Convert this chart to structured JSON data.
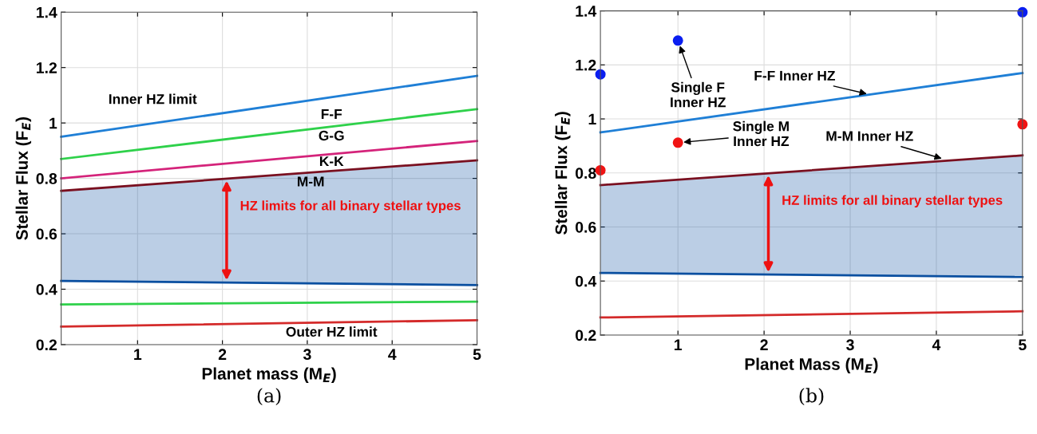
{
  "chart_data": [
    {
      "type": "line",
      "xlabel": "Planet mass (M$_{E}$)",
      "ylabel": "Stellar Flux (F$_{E}$)",
      "xlim": [
        0.1,
        5
      ],
      "ylim": [
        0.2,
        1.4
      ],
      "xticks": [
        1,
        2,
        3,
        4,
        5
      ],
      "yticks": [
        0.2,
        0.4,
        0.6,
        0.8,
        1,
        1.2,
        1.4
      ],
      "grid": true,
      "series": [
        {
          "color": "#1f7fd6",
          "x": [
            0.1,
            5
          ],
          "values": [
            0.95,
            1.17
          ]
        },
        {
          "color": "#2ed14a",
          "x": [
            0.1,
            5
          ],
          "values": [
            0.87,
            1.05
          ]
        },
        {
          "color": "#d4237a",
          "x": [
            0.1,
            5
          ],
          "values": [
            0.8,
            0.935
          ]
        },
        {
          "color": "#7a1020",
          "x": [
            0.1,
            5
          ],
          "values": [
            0.755,
            0.865
          ]
        },
        {
          "color": "#0a4fa0",
          "x": [
            0.1,
            5
          ],
          "values": [
            0.43,
            0.415
          ],
          "lower": [
            0.43,
            0.415
          ],
          "upper": [
            0.755,
            0.865
          ]
        },
        {
          "color": "#2ed14a",
          "x": [
            0.1,
            5
          ],
          "values": [
            0.345,
            0.355
          ]
        },
        {
          "color": "#d42a2a",
          "x": [
            0.1,
            5
          ],
          "values": [
            0.265,
            0.288
          ]
        }
      ],
      "annotations": [
        {
          "text": "HZ limits for all binary stellar types",
          "x": 2.05,
          "y": 0.8
        },
        "Inner HZ limit",
        "F-F",
        "G-G",
        "K-K",
        "M-M",
        "Outer HZ limit",
        "(a)"
      ]
    },
    {
      "type": "line",
      "xlabel": "Planet Mass (M$_{E}$)",
      "ylabel": "Stellar Flux (F$_{E}$)",
      "xlim": [
        0.1,
        5
      ],
      "ylim": [
        0.2,
        1.4
      ],
      "xticks": [
        1,
        2,
        3,
        4,
        5
      ],
      "yticks": [
        0.2,
        0.4,
        0.6,
        0.8,
        1,
        1.2,
        1.4
      ],
      "grid": true,
      "series": [
        {
          "color": "#1f7fd6",
          "x": [
            0.1,
            5
          ],
          "values": [
            0.95,
            1.17
          ]
        },
        {
          "color": "#7a1020",
          "x": [
            0.1,
            5
          ],
          "values": [
            0.755,
            0.865
          ]
        },
        {
          "color": "#0a4fa0",
          "x": [
            0.1,
            5
          ],
          "values": [
            0.43,
            0.415
          ],
          "lower": [
            0.43,
            0.415
          ],
          "upper": [
            0.755,
            0.865
          ]
        },
        {
          "color": "#d42a2a",
          "x": [
            0.1,
            5
          ],
          "values": [
            0.265,
            0.288
          ]
        },
        {
          "type": "scatter",
          "marker": "circle",
          "color": "#0a1ef0",
          "x": [
            0.1,
            1,
            5
          ],
          "values": [
            1.165,
            1.29,
            1.395
          ]
        },
        {
          "type": "scatter",
          "marker": "circle",
          "color": "#f01414",
          "x": [
            0.1,
            1,
            5
          ],
          "values": [
            0.81,
            0.912,
            0.98
          ]
        }
      ],
      "annotations": [
        {
          "text": "HZ limits for all binary stellar types",
          "x": 2.05,
          "y": 0.8
        },
        {
          "text": "Single F\nInner HZ",
          "x": 1,
          "y": 1.29
        },
        {
          "text": "F-F Inner HZ",
          "x": 3.23,
          "y": 1.09
        },
        {
          "text": "Single M\nInner HZ",
          "x": 1,
          "y": 0.912
        },
        {
          "text": "M-M Inner HZ",
          "x": 4.1,
          "y": 0.85
        },
        "(b)"
      ]
    }
  ]
}
